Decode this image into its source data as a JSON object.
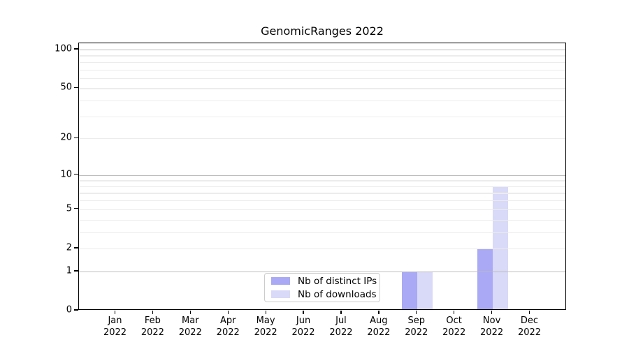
{
  "title": "GenomicRanges 2022",
  "chart_data": {
    "type": "bar",
    "title": "GenomicRanges 2022",
    "categories": [
      "Jan 2022",
      "Feb 2022",
      "Mar 2022",
      "Apr 2022",
      "May 2022",
      "Jun 2022",
      "Jul 2022",
      "Aug 2022",
      "Sep 2022",
      "Oct 2022",
      "Nov 2022",
      "Dec 2022"
    ],
    "series": [
      {
        "name": "Nb of distinct IPs",
        "color": "#a9a9f5",
        "values": [
          0,
          0,
          0,
          0,
          0,
          0,
          0,
          0,
          1,
          0,
          2,
          0
        ]
      },
      {
        "name": "Nb of downloads",
        "color": "#d9d9f8",
        "values": [
          0,
          0,
          0,
          0,
          0,
          0,
          0,
          0,
          1,
          0,
          8,
          0
        ]
      }
    ],
    "xlabel": "",
    "ylabel": "",
    "y_scale": "log10(1+y)",
    "y_ticks": [
      0,
      1,
      2,
      5,
      10,
      20,
      50,
      100
    ],
    "y_major_gridlines": [
      1,
      10,
      100
    ],
    "y_minor_gridlines": [
      2,
      3,
      4,
      5,
      6,
      7,
      8,
      9,
      20,
      30,
      40,
      50,
      60,
      70,
      80,
      90
    ],
    "ylim": [
      0,
      112
    ],
    "grid": "horizontal",
    "legend_position": "lower center",
    "colors": {
      "axis": "#000000",
      "grid_major": "#bdbdbd",
      "grid_minor": "#ececec",
      "background": "#ffffff"
    }
  }
}
